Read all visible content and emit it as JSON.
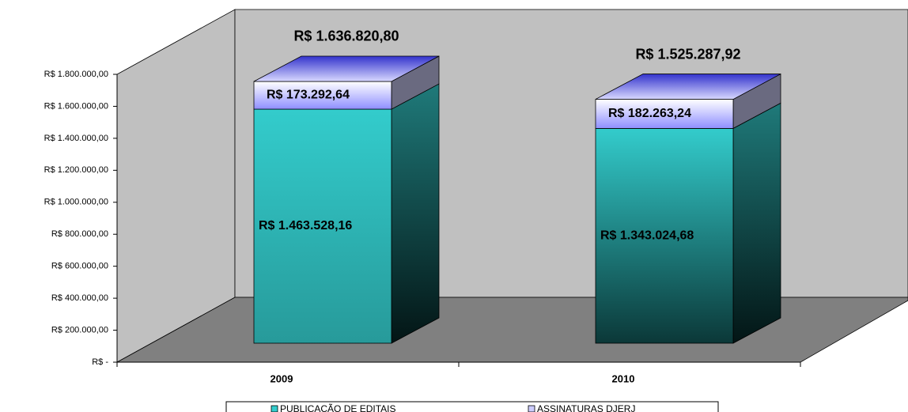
{
  "chart_data": {
    "type": "bar3d_stacked",
    "categories": [
      "2009",
      "2010"
    ],
    "series": [
      {
        "name": "PUBLICAÇÃO DE EDITAIS",
        "color": "#33cccc",
        "values": [
          1463528.16,
          1343024.68
        ],
        "value_labels": [
          "R$ 1.463.528,16",
          "R$ 1.343.024,68"
        ]
      },
      {
        "name": "ASSINATURAS DJERJ",
        "color": "#ccccff",
        "values": [
          173292.64,
          182263.24
        ],
        "value_labels": [
          "R$ 173.292,64",
          "R$ 182.263,24"
        ]
      }
    ],
    "totals": {
      "values": [
        1636820.8,
        1525287.92
      ],
      "value_labels": [
        "R$ 1.636.820,80",
        "R$ 1.525.287,92"
      ]
    },
    "ylim": [
      0,
      1800000
    ],
    "yticks": [
      {
        "value": 0,
        "label": "R$ -"
      },
      {
        "value": 200000,
        "label": "R$ 200.000,00"
      },
      {
        "value": 400000,
        "label": "R$ 400.000,00"
      },
      {
        "value": 600000,
        "label": "R$ 600.000,00"
      },
      {
        "value": 800000,
        "label": "R$ 800.000,00"
      },
      {
        "value": 1000000,
        "label": "R$ 1.000.000,00"
      },
      {
        "value": 1200000,
        "label": "R$ 1.200.000,00"
      },
      {
        "value": 1400000,
        "label": "R$ 1.400.000,00"
      },
      {
        "value": 1600000,
        "label": "R$ 1.600.000,00"
      },
      {
        "value": 1800000,
        "label": "R$ 1.800.000,00"
      }
    ]
  }
}
